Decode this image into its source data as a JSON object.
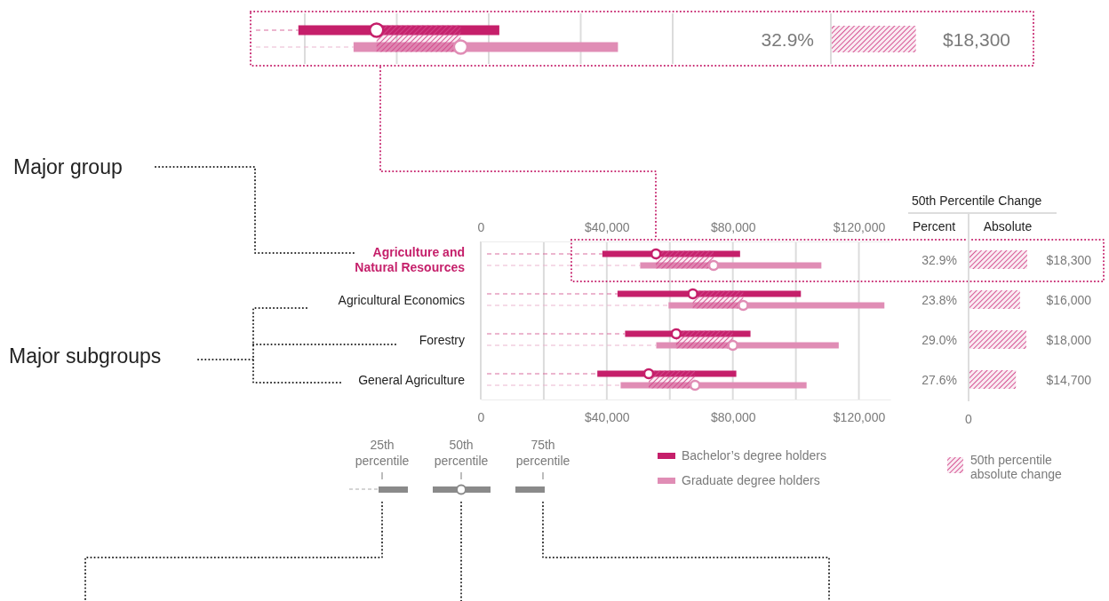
{
  "chart_data": [
    {
      "type": "other",
      "annotations": [
        "32.9%",
        "$18,300"
      ]
    },
    {
      "type": "bar",
      "orientation": "horizontal",
      "categories": [
        "Agriculture and Natural Resources",
        "Agricultural Economics",
        "Forestry",
        "General Agriculture"
      ],
      "grid": "x",
      "marker": "circle",
      "legend": "bottom",
      "xlim": [
        0,
        130000
      ],
      "xticks": [
        0,
        {
          "value": 20000,
          "label": null
        },
        {
          "value": 40000,
          "label": "$40,000"
        },
        {
          "value": 60000,
          "label": null
        },
        {
          "value": 80000,
          "label": "$80,000"
        },
        {
          "value": 100000,
          "label": null
        },
        {
          "value": 120000,
          "label": "$120,000"
        }
      ],
      "x2lim": [
        0,
        130000
      ],
      "x2ticks": [
        0,
        {
          "value": 20000,
          "label": null
        },
        {
          "value": 40000,
          "label": "$40,000"
        },
        {
          "value": 60000,
          "label": null
        },
        {
          "value": 80000,
          "label": "$80,000"
        },
        {
          "value": 100000,
          "label": null
        },
        {
          "value": 120000,
          "label": "$120,000"
        }
      ],
      "series": [
        {
          "name": "Bachelor’s degree holders",
          "color": "#c51f6a",
          "base": [
            38600,
            43400,
            45800,
            37000
          ],
          "values": [
            43700,
            58200,
            39800,
            44100
          ]
        },
        {
          "name": "Graduate degree holders",
          "color": "#e08db5",
          "base": [
            50600,
            59600,
            55700,
            44400
          ],
          "values": [
            57500,
            68500,
            57900,
            59000
          ]
        },
        {
          "name": "50th percentile absolute change",
          "color": "#d2468a",
          "base": [
            55600,
            67300,
            62000,
            53300
          ],
          "values": [
            18300,
            16000,
            18000,
            14700
          ]
        },
        {
          "type": "scatter",
          "color": "#c51f6a",
          "x": [
            "Agriculture and Natural Resources",
            "Agricultural Economics",
            "Forestry",
            "General Agriculture"
          ],
          "values": [
            55600,
            67300,
            62000,
            53300
          ]
        },
        {
          "type": "scatter",
          "color": "#e08db5",
          "x": [
            "Agriculture and Natural Resources",
            "Agricultural Economics",
            "Forestry",
            "General Agriculture"
          ],
          "values": [
            73900,
            83300,
            80000,
            68000
          ]
        }
      ],
      "annotations": [
        "Major group",
        "Major subgroups",
        "25th percentile",
        "50th percentile",
        "75th percentile"
      ]
    },
    {
      "type": "bar",
      "orientation": "horizontal",
      "title": "50th Percentile Change",
      "categories": [
        null,
        null,
        null,
        null
      ],
      "color": "#d2468a",
      "values": [
        18300,
        16000,
        18000,
        14700
      ],
      "value_labels": [
        "$18,300",
        "$16,000",
        "$18,000",
        "$14,700"
      ],
      "annotations": [
        "Percent",
        "Absolute",
        "32.9%",
        "23.8%",
        "29.0%",
        "27.6%",
        "0"
      ]
    }
  ]
}
